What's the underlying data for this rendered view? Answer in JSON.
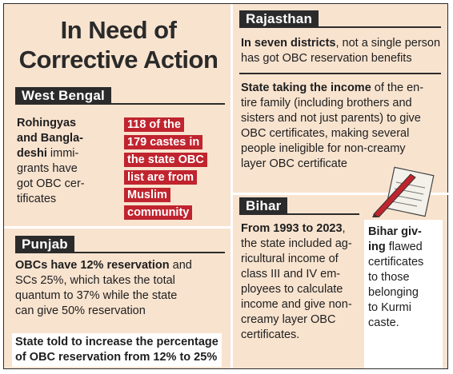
{
  "title": "In Need of Corrective Action",
  "colors": {
    "background": "#f8e3cf",
    "tag": "#2b2b2b",
    "highlight": "#c0242e"
  },
  "west_bengal": {
    "tag": "West Bengal",
    "lines": [
      "Rohingyas",
      "and Bangla-",
      "deshi",
      " immi-",
      "grants have",
      "got OBC cer-",
      "tificates"
    ],
    "highlight_lines": [
      "118 of the",
      "179 castes in",
      "the state OBC",
      "list are from",
      "Muslim",
      "community"
    ]
  },
  "punjab": {
    "tag": "Punjab",
    "lines": [
      "OBCs have 12% reservation",
      " and",
      "SCs 25%, which takes the total",
      "quantum to 37% while the state",
      "can give 50% reservation"
    ],
    "note_lines": [
      "State told to increase the percentage",
      "of OBC reservation from 12% to 25%"
    ]
  },
  "rajasthan": {
    "tag": "Rajasthan",
    "para1": [
      "In seven districts",
      ", not a single person",
      "has got OBC reservation benefits"
    ],
    "para2": [
      "State taking the income",
      " of the en-",
      "tire family (including brothers and",
      "sisters and not just parents) to give",
      "OBC certificates, making several",
      "people ineligible for non-creamy",
      "layer OBC certificate"
    ]
  },
  "bihar": {
    "tag": "Bihar",
    "icon": "pen-paper-icon",
    "left_lines": [
      "From 1993 to 2023",
      ",",
      "the state included ag-",
      "ricultural income of",
      "class III and IV em-",
      "ployees to calculate",
      "income and give non-",
      "creamy layer OBC",
      "certificates."
    ],
    "right_lines": [
      "Bihar giv-",
      "ing",
      " flawed",
      "certificates",
      "to those",
      "belonging",
      "to Kurmi",
      "caste."
    ]
  }
}
